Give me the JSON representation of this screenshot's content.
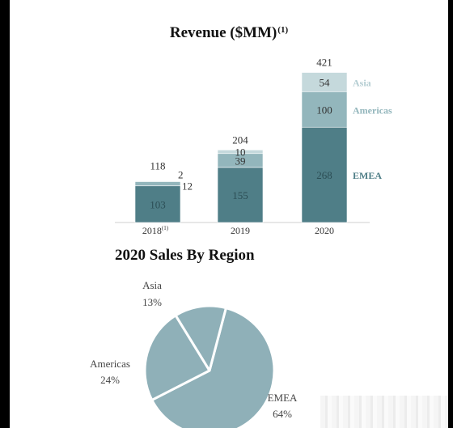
{
  "chart_data": [
    {
      "type": "bar",
      "title": "Revenue ($MM)",
      "title_note": "(1)",
      "categories": [
        "2018",
        "2019",
        "2020"
      ],
      "category_notes": [
        "(1)",
        "",
        ""
      ],
      "series": [
        {
          "name": "EMEA",
          "values": [
            103,
            155,
            268
          ]
        },
        {
          "name": "Americas",
          "values": [
            12,
            39,
            100
          ]
        },
        {
          "name": "Asia",
          "values": [
            2,
            10,
            54
          ]
        }
      ],
      "totals": [
        "118",
        "204",
        "421"
      ],
      "ylim": [
        0,
        421
      ],
      "colors": [
        "#4f7e87",
        "#93b6bc",
        "#c5d9dc"
      ],
      "label_colors": [
        "#4f7e87",
        "#93b6bc",
        "#b4cdd2"
      ]
    },
    {
      "type": "pie",
      "title": "2020 Sales By Region",
      "slices": [
        {
          "name": "EMEA",
          "value": 64,
          "label": "64%"
        },
        {
          "name": "Americas",
          "value": 24,
          "label": "24%"
        },
        {
          "name": "Asia",
          "value": 13,
          "label": "13%"
        }
      ],
      "color": "#8fb0b8",
      "edge": "#ffffff"
    }
  ]
}
